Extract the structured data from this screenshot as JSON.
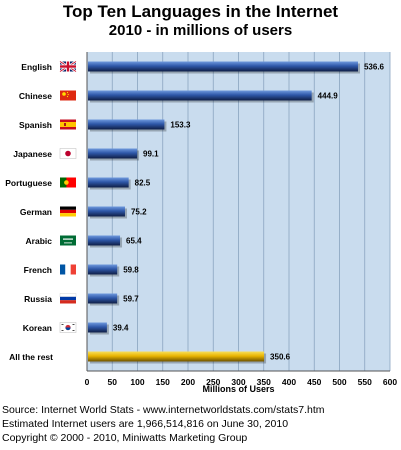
{
  "chart_data": {
    "type": "bar",
    "orientation": "horizontal",
    "title": "Top Ten Languages in the Internet",
    "subtitle": "2010 - in millions of users",
    "xlabel": "Millions of Users",
    "ylabel": "",
    "xlim": [
      0,
      600
    ],
    "x_ticks": [
      0,
      50,
      100,
      150,
      200,
      250,
      300,
      350,
      400,
      450,
      500,
      550,
      600
    ],
    "grid": true,
    "categories": [
      "English",
      "Chinese",
      "Spanish",
      "Japanese",
      "Portuguese",
      "German",
      "Arabic",
      "French",
      "Russia",
      "Korean",
      "All the rest"
    ],
    "values": [
      536.6,
      444.9,
      153.3,
      99.1,
      82.5,
      75.2,
      65.4,
      59.8,
      59.7,
      39.4,
      350.6
    ],
    "value_labels": [
      "536.6",
      "444.9",
      "153.3",
      "99.1",
      "82.5",
      "75.2",
      "65.4",
      "59.8",
      "59.7",
      "39.4",
      "350.6"
    ],
    "flags": [
      "uk-flag-icon",
      "china-flag-icon",
      "spain-flag-icon",
      "japan-flag-icon",
      "portugal-flag-icon",
      "germany-flag-icon",
      "saudi-arabia-flag-icon",
      "france-flag-icon",
      "russia-flag-icon",
      "south-korea-flag-icon",
      ""
    ],
    "colors": {
      "bar": "#2e57a8",
      "bar_light": "#6f9ade",
      "bar_dark": "#0f1e45",
      "highlight_bar": "#e8b400",
      "highlight_bar_light": "#f8df5a",
      "highlight_bar_dark": "#6e5200",
      "plot_bg": "#c9dcee",
      "grid": "#8aa4bf"
    }
  },
  "footer": {
    "line1": "Source: Internet World Stats - www.internetworldstats.com/stats7.htm",
    "line2": "Estimated Internet users are 1,966,514,816 on June 30, 2010",
    "line3": "Copyright © 2000 - 2010, Miniwatts Marketing Group"
  }
}
